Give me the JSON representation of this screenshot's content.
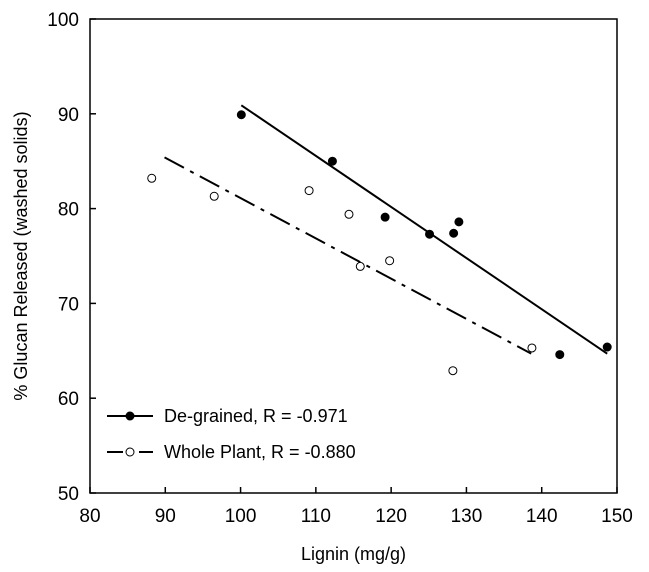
{
  "chart_data": {
    "type": "scatter",
    "title": "",
    "xlabel": "Lignin (mg/g)",
    "ylabel": "% Glucan Released (washed solids)",
    "xlim": [
      80,
      150
    ],
    "ylim": [
      50,
      100
    ],
    "xticks": [
      "80",
      "90",
      "100",
      "110",
      "120",
      "130",
      "140",
      "150"
    ],
    "yticks": [
      "50",
      "60",
      "70",
      "80",
      "90",
      "100"
    ],
    "grid": false,
    "legend_position": "bottom-left",
    "series": [
      {
        "name": "De-grained, R = -0.971",
        "marker": "filled-circle",
        "line_style": "solid",
        "color": "#000000",
        "points": [
          {
            "x": 100.1,
            "y": 89.9
          },
          {
            "x": 112.2,
            "y": 85.0
          },
          {
            "x": 119.2,
            "y": 79.1
          },
          {
            "x": 125.1,
            "y": 77.3
          },
          {
            "x": 128.3,
            "y": 77.4
          },
          {
            "x": 129.0,
            "y": 78.6
          },
          {
            "x": 142.4,
            "y": 64.6
          },
          {
            "x": 148.7,
            "y": 65.4
          }
        ],
        "fit": [
          {
            "x": 100.1,
            "y": 90.9
          },
          {
            "x": 148.7,
            "y": 64.7
          }
        ]
      },
      {
        "name": "Whole Plant, R = -0.880",
        "marker": "open-circle",
        "line_style": "dash-dot",
        "color": "#000000",
        "points": [
          {
            "x": 88.2,
            "y": 83.2
          },
          {
            "x": 96.5,
            "y": 81.3
          },
          {
            "x": 109.1,
            "y": 81.9
          },
          {
            "x": 114.4,
            "y": 79.4
          },
          {
            "x": 115.9,
            "y": 73.9
          },
          {
            "x": 119.8,
            "y": 74.5
          },
          {
            "x": 128.2,
            "y": 62.9
          },
          {
            "x": 138.7,
            "y": 65.3
          }
        ],
        "fit": [
          {
            "x": 89.9,
            "y": 85.4
          },
          {
            "x": 138.6,
            "y": 64.7
          }
        ]
      }
    ]
  }
}
